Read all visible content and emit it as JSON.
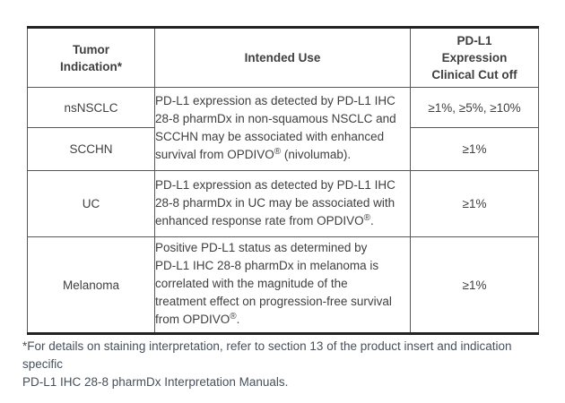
{
  "colors": {
    "background": "#ffffff",
    "border_heavy": "#232323",
    "border_light": "#585858",
    "table_text": "#3f3f3f",
    "footnote_text": "#47505a"
  },
  "table": {
    "columns": [
      {
        "label": "Tumor Indication*"
      },
      {
        "label": "Intended Use"
      },
      {
        "label": "PD-L1 Expression Clinical Cut off"
      }
    ],
    "rows": [
      {
        "indication": "nsNSCLC",
        "cutoff": "≥1%, ≥5%, ≥10%"
      },
      {
        "indication": "SCCHN",
        "cutoff": "≥1%"
      },
      {
        "indication": "UC",
        "cutoff": "≥1%"
      },
      {
        "indication": "Melanoma",
        "cutoff": "≥1%"
      }
    ],
    "intended_use": {
      "nsnsclc_scchn": [
        {
          "t": "PD-L1 expression as detected by PD-L1 IHC\n28-8 pharmDx in non-squamous NSCLC and\nSCCHN may be associated with enhanced\nsurvival from OPDIVO"
        },
        {
          "t": "®",
          "sup": true
        },
        {
          "t": " (nivolumab)."
        }
      ],
      "uc": [
        {
          "t": "PD-L1 expression as detected by PD-L1 IHC\n28-8 pharmDx in UC may be associated with\nenhanced response rate from OPDIVO"
        },
        {
          "t": "®",
          "sup": true
        },
        {
          "t": "."
        }
      ],
      "melanoma": [
        {
          "t": "Positive PD-L1 status as determined by\nPD-L1 IHC 28-8 pharmDx in melanoma is\ncorrelated with the magnitude of the\ntreatment effect on progression-free survival\nfrom OPDIVO"
        },
        {
          "t": "®",
          "sup": true
        },
        {
          "t": "."
        }
      ]
    }
  },
  "footnote": "*For details on staining interpretation, refer to section 13 of the product insert and indication specific\nPD-L1 IHC 28-8 pharmDx Interpretation Manuals."
}
